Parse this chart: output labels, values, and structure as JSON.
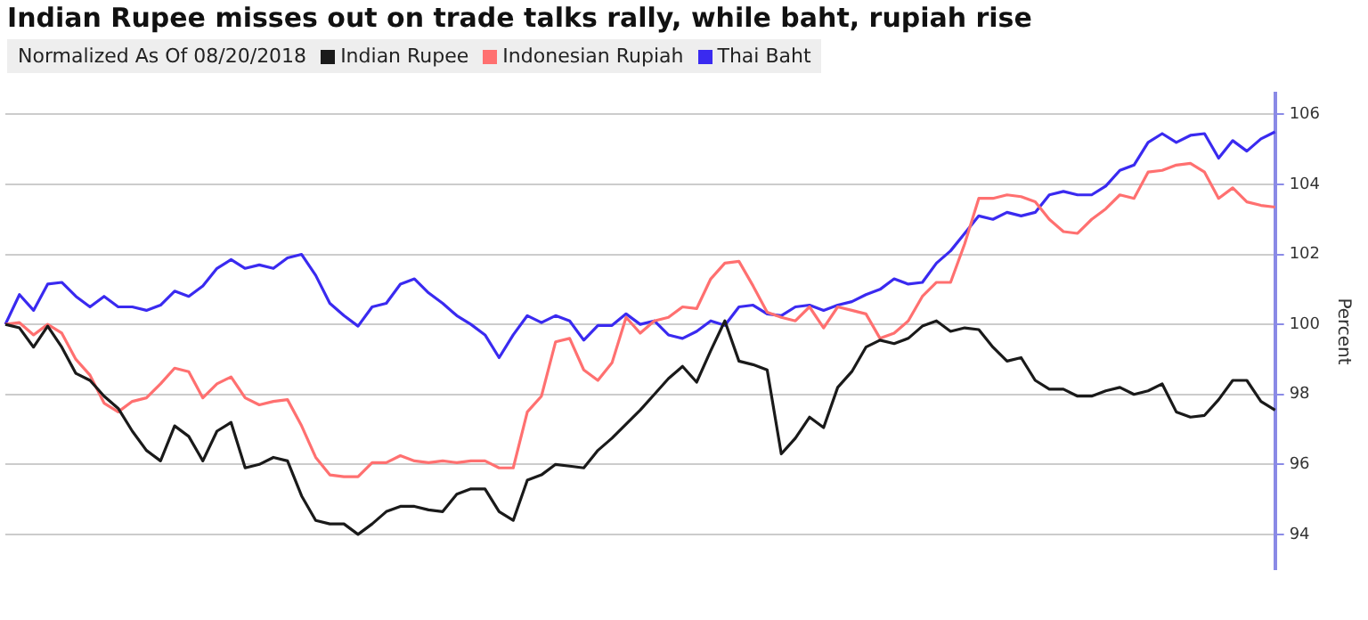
{
  "chart_data": {
    "type": "line",
    "title": "Indian Rupee misses out on trade talks rally, while baht, rupiah rise",
    "legend_title": "Normalized As Of 08/20/2018",
    "ylabel": "Percent",
    "categories": [
      null,
      null,
      null,
      null,
      null,
      null,
      null,
      null,
      null,
      null,
      null,
      null,
      null,
      null,
      null,
      null,
      null,
      null,
      null,
      null,
      null,
      null,
      null,
      null,
      null,
      null,
      null,
      null,
      null,
      null,
      null,
      null,
      null,
      null,
      null,
      null,
      null,
      null,
      null,
      null,
      null,
      null,
      null,
      null,
      null,
      null,
      null,
      null,
      null,
      null,
      null,
      null,
      null,
      null,
      null,
      null,
      null,
      null,
      null,
      null,
      null,
      null,
      null,
      null,
      null,
      null,
      null,
      null,
      null,
      null,
      null,
      null,
      null,
      null,
      null,
      null,
      null,
      null,
      null,
      null,
      null,
      null,
      null,
      null,
      null,
      null,
      null,
      null,
      null,
      null,
      null
    ],
    "series": [
      {
        "name": "Indian Rupee",
        "color": "#1a1a1a",
        "values": [
          100.0,
          99.9,
          99.35,
          99.95,
          99.35,
          98.6,
          98.4,
          97.95,
          97.6,
          96.95,
          96.4,
          96.1,
          97.1,
          96.8,
          96.1,
          96.95,
          97.2,
          95.9,
          96.0,
          96.2,
          96.1,
          95.1,
          94.4,
          94.3,
          94.3,
          94.0,
          94.3,
          94.65,
          94.8,
          94.8,
          94.7,
          94.65,
          95.15,
          95.3,
          95.3,
          94.65,
          94.4,
          95.55,
          95.7,
          96.0,
          95.95,
          95.9,
          96.4,
          96.75,
          97.15,
          97.55,
          98.0,
          98.45,
          98.8,
          98.35,
          99.25,
          100.1,
          98.95,
          98.85,
          98.7,
          96.3,
          96.75,
          97.35,
          97.05,
          98.2,
          98.65,
          99.35,
          99.55,
          99.45,
          99.6,
          99.95,
          100.1,
          99.8,
          99.9,
          99.85,
          99.35,
          98.95,
          99.05,
          98.4,
          98.15,
          98.15,
          97.95,
          97.95,
          98.1,
          98.2,
          98.0,
          98.1,
          98.3,
          97.5,
          97.35,
          97.4,
          97.85,
          98.4,
          98.4,
          97.8,
          97.55
        ]
      },
      {
        "name": "Indonesian Rupiah",
        "color": "#ff7070",
        "values": [
          100.0,
          100.05,
          99.7,
          100.0,
          99.75,
          99.0,
          98.55,
          97.75,
          97.5,
          97.8,
          97.9,
          98.3,
          98.75,
          98.65,
          97.9,
          98.3,
          98.5,
          97.9,
          97.7,
          97.8,
          97.85,
          97.1,
          96.2,
          95.7,
          95.65,
          95.65,
          96.05,
          96.05,
          96.25,
          96.1,
          96.05,
          96.1,
          96.05,
          96.1,
          96.1,
          95.9,
          95.9,
          97.5,
          97.95,
          99.5,
          99.6,
          98.7,
          98.4,
          98.9,
          100.2,
          99.75,
          100.1,
          100.2,
          100.5,
          100.45,
          101.3,
          101.75,
          101.8,
          101.1,
          100.35,
          100.2,
          100.1,
          100.5,
          99.9,
          100.5,
          100.4,
          100.3,
          99.6,
          99.75,
          100.1,
          100.8,
          101.2,
          101.2,
          102.3,
          103.6,
          103.6,
          103.7,
          103.65,
          103.5,
          103.0,
          102.65,
          102.6,
          103.0,
          103.3,
          103.7,
          103.6,
          104.35,
          104.4,
          104.55,
          104.6,
          104.35,
          103.6,
          103.9,
          103.5,
          103.4,
          103.35
        ]
      },
      {
        "name": "Thai Baht",
        "color": "#3a2af0",
        "values": [
          100.0,
          100.85,
          100.4,
          101.15,
          101.2,
          100.8,
          100.5,
          100.8,
          100.5,
          100.5,
          100.4,
          100.55,
          100.95,
          100.8,
          101.1,
          101.6,
          101.85,
          101.6,
          101.7,
          101.6,
          101.9,
          102.0,
          101.4,
          100.6,
          100.25,
          99.95,
          100.5,
          100.6,
          101.15,
          101.3,
          100.9,
          100.6,
          100.25,
          100.0,
          99.7,
          99.05,
          99.7,
          100.25,
          100.05,
          100.25,
          100.1,
          99.55,
          99.97,
          99.97,
          100.3,
          100.0,
          100.1,
          99.7,
          99.6,
          99.8,
          100.1,
          99.97,
          100.5,
          100.55,
          100.3,
          100.25,
          100.5,
          100.55,
          100.4,
          100.55,
          100.65,
          100.85,
          101.0,
          101.3,
          101.15,
          101.2,
          101.75,
          102.1,
          102.6,
          103.1,
          103.0,
          103.2,
          103.1,
          103.2,
          103.7,
          103.8,
          103.7,
          103.7,
          103.95,
          104.4,
          104.55,
          105.2,
          105.45,
          105.2,
          105.4,
          105.45,
          104.75,
          105.25,
          104.95,
          105.3,
          105.5
        ]
      }
    ],
    "ylim": [
      93,
      106.6
    ],
    "yticks": [
      94,
      96,
      98,
      100,
      102,
      104,
      106
    ],
    "grid": "y",
    "legend": "top left",
    "marker": "none",
    "line_style": "solid"
  }
}
